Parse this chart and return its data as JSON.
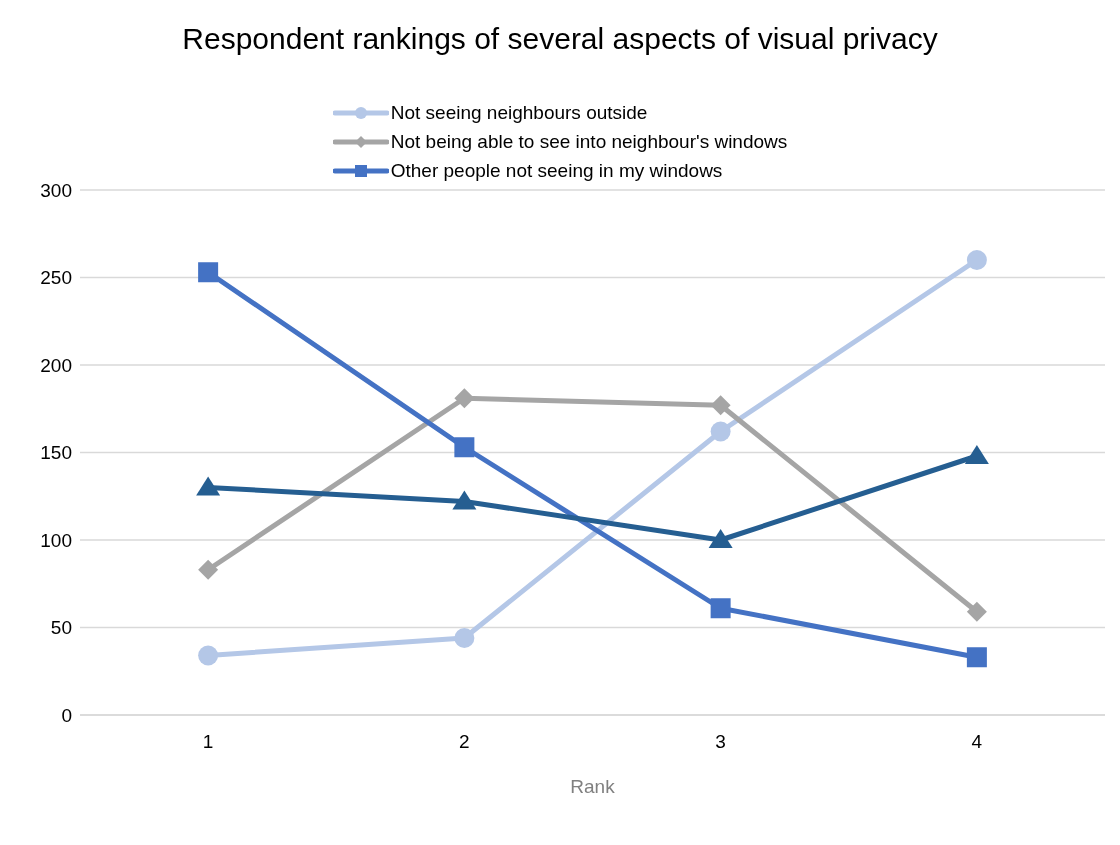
{
  "chart_data": {
    "type": "line",
    "title": "Respondent rankings of several aspects of visual privacy",
    "xlabel": "Rank",
    "categories": [
      "1",
      "2",
      "3",
      "4"
    ],
    "series": [
      {
        "name": "Not seeing neighbours outside",
        "color": "#b4c7e7",
        "marker": "circle",
        "values": [
          34,
          44,
          162,
          260
        ]
      },
      {
        "name": "Not being able to see into neighbour's windows",
        "color": "#a5a5a5",
        "marker": "diamond",
        "values": [
          83,
          181,
          177,
          59
        ]
      },
      {
        "name": "Other people not seeing in my windows",
        "color": "#4472c4",
        "marker": "square",
        "values": [
          253,
          153,
          61,
          33
        ]
      },
      {
        "color": "#255e91",
        "marker": "triangle",
        "values": [
          130,
          122,
          100,
          148
        ]
      }
    ],
    "ylim": [
      0,
      300
    ],
    "yticks": [
      0,
      50,
      100,
      150,
      200,
      250,
      300
    ],
    "grid": "y",
    "legend": "top",
    "line_style": "solid"
  }
}
